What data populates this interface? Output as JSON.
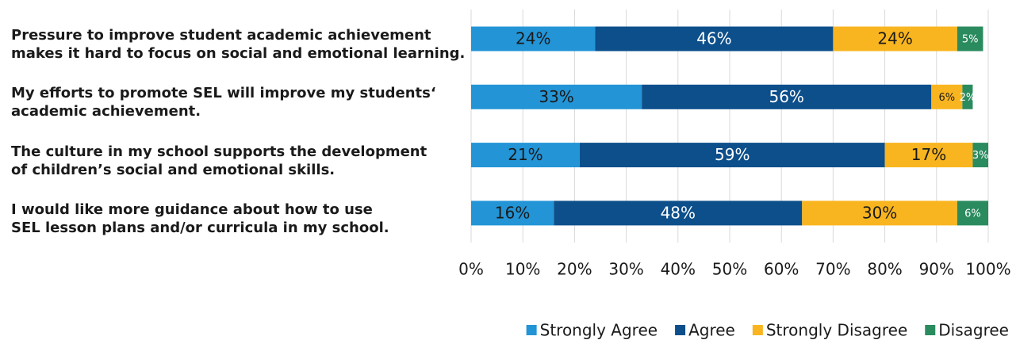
{
  "chart_data": {
    "type": "stacked_barh",
    "categories": [
      "Pressure to improve student academic achievement\nmakes it hard to focus on social and emotional learning.",
      "My efforts to promote SEL will improve my students‘\nacademic achievement.",
      "The culture in my school supports the development\nof children’s social and emotional skills.",
      "I would like more guidance about how to use\nSEL lesson plans and/or curricula in my school."
    ],
    "series": [
      {
        "name": "Strongly Agree",
        "color": "#2394d6",
        "values": [
          24,
          33,
          21,
          16
        ],
        "value_labels": [
          "24%",
          "33%",
          "21%",
          "16%"
        ]
      },
      {
        "name": "Agree",
        "color": "#0c4f8b",
        "values": [
          46,
          56,
          59,
          48
        ],
        "value_labels": [
          "46%",
          "56%",
          "59%",
          "48%"
        ]
      },
      {
        "name": "Strongly Disagree",
        "color": "#f9b51f",
        "values": [
          24,
          6,
          17,
          30
        ],
        "value_labels": [
          "24%",
          "6%",
          "17%",
          "30%"
        ]
      },
      {
        "name": "Disagree",
        "color": "#2a8b5f",
        "values": [
          5,
          2,
          3,
          6
        ],
        "value_labels": [
          "5%",
          "2%",
          "3%",
          "6%"
        ]
      }
    ],
    "xlim": [
      0,
      100
    ],
    "xticks": [
      {
        "value": 0,
        "label": "0%"
      },
      {
        "value": 10,
        "label": "10%"
      },
      {
        "value": 20,
        "label": "20%"
      },
      {
        "value": 30,
        "label": "30%"
      },
      {
        "value": 40,
        "label": "40%"
      },
      {
        "value": 50,
        "label": "50%"
      },
      {
        "value": 60,
        "label": "60%"
      },
      {
        "value": 70,
        "label": "70%"
      },
      {
        "value": 80,
        "label": "80%"
      },
      {
        "value": 90,
        "label": "90%"
      },
      {
        "value": 100,
        "label": "100%"
      }
    ],
    "grid": true,
    "legend": "bottom-right"
  }
}
